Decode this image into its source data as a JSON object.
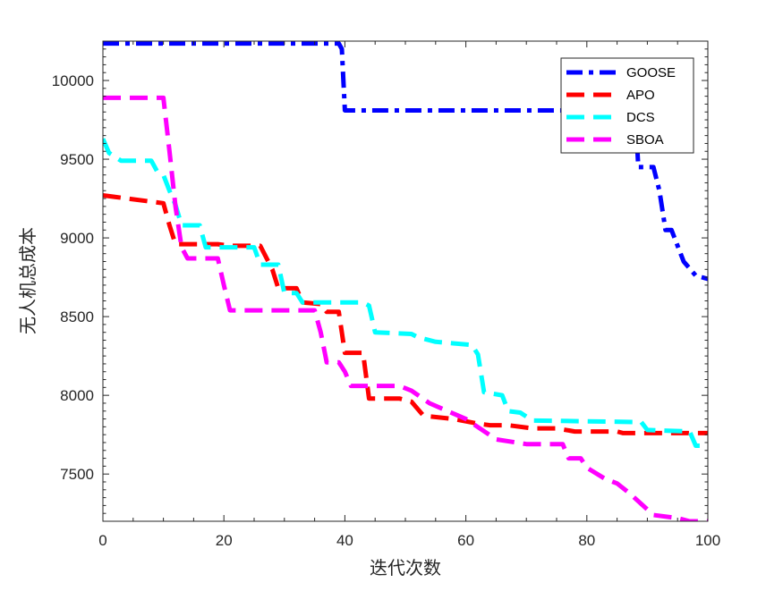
{
  "chart_data": {
    "type": "line",
    "title": "",
    "xlabel": "迭代次数",
    "ylabel": "无人机总成本",
    "xlim": [
      0,
      100
    ],
    "ylim": [
      7200,
      10250
    ],
    "xticks": [
      "0",
      "20",
      "40",
      "60",
      "80",
      "100"
    ],
    "xtick_values": [
      0,
      20,
      40,
      60,
      80,
      100
    ],
    "yticks": [
      "7500",
      "8000",
      "8500",
      "9000",
      "9500",
      "10000"
    ],
    "ytick_values": [
      7500,
      8000,
      8500,
      9000,
      9500,
      10000
    ],
    "legend_position": "top-right",
    "series": [
      {
        "name": "GOOSE",
        "color": "#0000FF",
        "style": "dash-dot",
        "points": [
          [
            0,
            10235
          ],
          [
            39,
            10235
          ],
          [
            39.5,
            10200
          ],
          [
            40,
            9810
          ],
          [
            88,
            9810
          ],
          [
            88.5,
            9450
          ],
          [
            91,
            9450
          ],
          [
            92,
            9300
          ],
          [
            93,
            9050
          ],
          [
            94,
            9050
          ],
          [
            96,
            8850
          ],
          [
            98,
            8760
          ],
          [
            100,
            8740
          ]
        ]
      },
      {
        "name": "APO",
        "color": "#FF0000",
        "style": "dashed",
        "points": [
          [
            0,
            9270
          ],
          [
            10,
            9220
          ],
          [
            11,
            9080
          ],
          [
            12,
            8960
          ],
          [
            19,
            8960
          ],
          [
            21,
            8950
          ],
          [
            26,
            8950
          ],
          [
            28,
            8800
          ],
          [
            29,
            8680
          ],
          [
            32,
            8680
          ],
          [
            33,
            8590
          ],
          [
            36,
            8580
          ],
          [
            37,
            8530
          ],
          [
            39,
            8530
          ],
          [
            40,
            8270
          ],
          [
            43,
            8270
          ],
          [
            44,
            7980
          ],
          [
            49,
            7980
          ],
          [
            51,
            7960
          ],
          [
            53,
            7870
          ],
          [
            58,
            7850
          ],
          [
            62,
            7820
          ],
          [
            64,
            7810
          ],
          [
            67,
            7810
          ],
          [
            71,
            7790
          ],
          [
            75,
            7790
          ],
          [
            78,
            7770
          ],
          [
            85,
            7770
          ],
          [
            86,
            7760
          ],
          [
            100,
            7760
          ]
        ]
      },
      {
        "name": "DCS",
        "color": "#00FFFF",
        "style": "dashed",
        "points": [
          [
            0,
            9630
          ],
          [
            1,
            9540
          ],
          [
            3,
            9490
          ],
          [
            8,
            9490
          ],
          [
            9,
            9420
          ],
          [
            10,
            9400
          ],
          [
            11,
            9300
          ],
          [
            12,
            9210
          ],
          [
            13,
            9080
          ],
          [
            16,
            9080
          ],
          [
            17,
            8940
          ],
          [
            21,
            8940
          ],
          [
            25,
            8940
          ],
          [
            26,
            8830
          ],
          [
            29,
            8830
          ],
          [
            30,
            8650
          ],
          [
            32,
            8650
          ],
          [
            33,
            8590
          ],
          [
            43,
            8590
          ],
          [
            44,
            8570
          ],
          [
            45,
            8400
          ],
          [
            51,
            8390
          ],
          [
            52,
            8370
          ],
          [
            55,
            8340
          ],
          [
            61,
            8320
          ],
          [
            62,
            8260
          ],
          [
            63,
            8020
          ],
          [
            66,
            8000
          ],
          [
            67,
            7900
          ],
          [
            69,
            7890
          ],
          [
            71,
            7840
          ],
          [
            89,
            7830
          ],
          [
            90,
            7780
          ],
          [
            97,
            7770
          ],
          [
            98,
            7680
          ],
          [
            100,
            7680
          ]
        ]
      },
      {
        "name": "SBOA",
        "color": "#FF00FF",
        "style": "dashed",
        "points": [
          [
            0,
            9890
          ],
          [
            10,
            9890
          ],
          [
            11,
            9550
          ],
          [
            12,
            9200
          ],
          [
            13,
            8940
          ],
          [
            14,
            8870
          ],
          [
            19,
            8870
          ],
          [
            20,
            8700
          ],
          [
            21,
            8540
          ],
          [
            30,
            8540
          ],
          [
            34,
            8540
          ],
          [
            35,
            8540
          ],
          [
            36,
            8400
          ],
          [
            37,
            8210
          ],
          [
            39,
            8210
          ],
          [
            40,
            8150
          ],
          [
            41,
            8060
          ],
          [
            47,
            8060
          ],
          [
            49,
            8060
          ],
          [
            51,
            8030
          ],
          [
            54,
            7950
          ],
          [
            57,
            7900
          ],
          [
            60,
            7850
          ],
          [
            65,
            7720
          ],
          [
            70,
            7690
          ],
          [
            76,
            7690
          ],
          [
            77,
            7600
          ],
          [
            79,
            7600
          ],
          [
            80,
            7540
          ],
          [
            83,
            7470
          ],
          [
            85,
            7440
          ],
          [
            87,
            7380
          ],
          [
            89,
            7310
          ],
          [
            91,
            7240
          ],
          [
            95,
            7220
          ],
          [
            97,
            7200
          ],
          [
            100,
            7200
          ]
        ]
      }
    ]
  }
}
